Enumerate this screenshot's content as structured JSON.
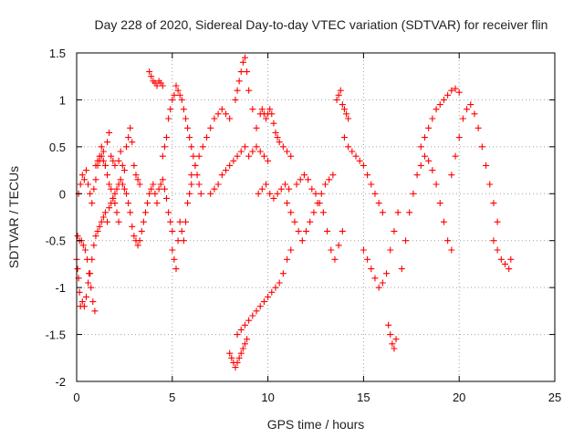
{
  "chart_data": {
    "type": "scatter",
    "title": "Day 228 of 2020, Sidereal Day-to-day VTEC variation (SDTVAR) for receiver flin",
    "xlabel": "GPS time / hours",
    "ylabel": "SDTVAR / TECUs",
    "xlim": [
      0,
      25
    ],
    "ylim": [
      -2,
      1.5
    ],
    "x_ticks": [
      0,
      5,
      10,
      15,
      20,
      25
    ],
    "y_ticks": [
      -2,
      -1.5,
      -1,
      -0.5,
      0,
      0.5,
      1,
      1.5
    ],
    "x_tick_labels": [
      "0",
      "5",
      "10",
      "15",
      "20",
      "25"
    ],
    "y_tick_labels": [
      "-2",
      "-1.5",
      "-1",
      "-0.5",
      "0",
      "0.5",
      "1",
      "1.5"
    ],
    "grid": true,
    "marker": "+",
    "color": "#ff0000",
    "series": [
      {
        "name": "SDTVAR",
        "x": [
          0.0,
          0.05,
          0.1,
          0.15,
          0.2,
          0.3,
          0.4,
          0.5,
          0.6,
          0.7,
          0.8,
          0.9,
          1.0,
          1.1,
          1.2,
          1.3,
          1.4,
          1.5,
          1.6,
          1.7,
          1.8,
          1.9,
          2.0,
          2.1,
          2.2,
          2.3,
          2.4,
          2.5,
          2.6,
          2.7,
          2.8,
          2.9,
          3.0,
          3.1,
          3.2,
          3.3,
          3.4,
          3.5,
          3.6,
          3.7,
          3.8,
          3.9,
          4.0,
          4.1,
          4.2,
          4.3,
          4.4,
          4.5,
          4.6,
          4.7,
          4.8,
          4.9,
          5.0,
          0.05,
          0.15,
          0.25,
          0.35,
          0.45,
          0.55,
          0.65,
          0.75,
          0.85,
          0.95,
          0.1,
          0.2,
          0.3,
          0.4,
          0.5,
          0.6,
          0.7,
          0.8,
          0.9,
          1.0,
          1.1,
          1.2,
          1.3,
          1.4,
          1.5,
          1.6,
          1.7,
          1.8,
          1.9,
          2.0,
          2.1,
          2.2,
          1.0,
          1.1,
          1.2,
          1.3,
          1.4,
          1.5,
          1.6,
          1.7,
          1.8,
          1.9,
          2.0,
          2.2,
          2.3,
          2.4,
          2.5,
          2.6,
          2.7,
          2.8,
          2.9,
          3.0,
          3.1,
          3.2,
          3.3,
          3.8,
          3.9,
          4.0,
          4.1,
          4.2,
          4.3,
          4.4,
          4.5,
          4.5,
          4.6,
          4.7,
          4.8,
          4.9,
          5.0,
          5.1,
          5.2,
          5.3,
          5.4,
          5.5,
          5.6,
          5.7,
          5.8,
          5.9,
          6.0,
          6.1,
          6.2,
          6.3,
          6.4,
          6.5,
          5.0,
          5.1,
          5.2,
          5.3,
          5.4,
          5.5,
          5.6,
          5.7,
          5.8,
          5.9,
          6.0,
          6.0,
          6.2,
          6.4,
          6.6,
          6.8,
          7.0,
          7.2,
          7.4,
          7.6,
          7.8,
          8.0,
          7.0,
          7.2,
          7.4,
          7.6,
          7.8,
          8.0,
          8.2,
          8.4,
          8.6,
          8.8,
          9.0,
          9.2,
          9.4,
          9.6,
          9.8,
          10.0,
          8.0,
          8.1,
          8.2,
          8.3,
          8.4,
          8.5,
          8.6,
          8.7,
          8.8,
          8.9,
          8.4,
          8.6,
          8.8,
          9.0,
          9.2,
          9.4,
          9.6,
          9.8,
          10.0,
          10.2,
          10.4,
          10.6,
          10.8,
          11.0,
          11.2,
          8.3,
          8.4,
          8.5,
          8.6,
          8.7,
          8.8,
          8.9,
          9.0,
          9.2,
          9.4,
          9.6,
          9.7,
          9.8,
          9.9,
          10.0,
          10.1,
          10.2,
          10.3,
          10.4,
          10.5,
          10.6,
          10.8,
          11.0,
          11.2,
          9.5,
          9.7,
          9.9,
          10.1,
          10.3,
          10.5,
          10.7,
          10.9,
          11.1,
          11.0,
          11.2,
          11.4,
          11.6,
          11.8,
          12.0,
          12.2,
          12.4,
          12.6,
          12.8,
          13.0,
          13.2,
          13.4,
          11.5,
          11.7,
          11.9,
          12.1,
          12.3,
          12.5,
          12.7,
          12.9,
          13.1,
          13.3,
          13.5,
          13.7,
          13.9,
          13.6,
          13.7,
          13.8,
          13.9,
          14.0,
          14.1,
          14.2,
          14.0,
          14.2,
          14.4,
          14.6,
          14.8,
          15.0,
          15.2,
          15.4,
          15.6,
          15.8,
          16.0,
          15.0,
          15.2,
          15.4,
          15.6,
          15.8,
          16.0,
          16.2,
          16.4,
          16.6,
          16.8,
          16.3,
          16.4,
          16.5,
          16.6,
          16.7,
          17.0,
          17.2,
          17.4,
          17.6,
          17.8,
          18.0,
          18.2,
          18.4,
          18.6,
          18.8,
          19.0,
          19.2,
          19.4,
          19.6,
          18.0,
          18.2,
          18.4,
          18.6,
          18.8,
          19.0,
          19.2,
          19.4,
          19.6,
          19.8,
          20.0,
          19.6,
          19.8,
          20.0,
          20.2,
          20.4,
          20.6,
          20.8,
          21.0,
          21.2,
          21.4,
          21.6,
          21.8,
          22.0,
          21.8,
          22.0,
          22.2,
          22.4,
          22.6,
          22.7
        ],
        "y": [
          -0.7,
          -0.8,
          -0.9,
          -1.05,
          -1.2,
          -1.15,
          -1.2,
          -1.1,
          -0.95,
          -0.85,
          -0.7,
          -0.55,
          -0.45,
          -0.4,
          -0.35,
          -0.3,
          -0.25,
          -0.2,
          -0.3,
          -0.15,
          -0.1,
          -0.05,
          0.0,
          0.05,
          0.1,
          0.15,
          0.1,
          0.05,
          0.0,
          -0.1,
          -0.2,
          -0.35,
          -0.45,
          -0.5,
          -0.55,
          -0.5,
          -0.4,
          -0.3,
          -0.2,
          -0.1,
          0.0,
          0.05,
          0.1,
          0.0,
          -0.1,
          0.05,
          0.1,
          0.15,
          0.05,
          -0.05,
          -0.2,
          -0.3,
          -0.4,
          -0.45,
          -0.5,
          -0.5,
          -0.55,
          -0.6,
          -0.7,
          -0.85,
          -1.0,
          -1.15,
          -1.25,
          0.0,
          0.1,
          0.2,
          0.15,
          0.25,
          0.1,
          0.0,
          -0.1,
          0.05,
          0.15,
          0.3,
          0.35,
          0.4,
          0.45,
          0.3,
          0.2,
          0.1,
          0.05,
          -0.05,
          -0.1,
          -0.2,
          -0.3,
          0.3,
          0.35,
          0.4,
          0.5,
          0.35,
          0.3,
          0.55,
          0.65,
          0.4,
          0.35,
          0.3,
          0.35,
          0.45,
          0.3,
          0.25,
          0.5,
          0.6,
          0.7,
          0.55,
          0.3,
          0.2,
          0.15,
          0.1,
          1.3,
          1.25,
          1.2,
          1.18,
          1.15,
          1.2,
          1.18,
          1.15,
          0.4,
          0.5,
          0.6,
          0.8,
          0.9,
          1.0,
          1.05,
          1.15,
          1.1,
          1.05,
          1.0,
          0.9,
          0.8,
          0.7,
          0.6,
          0.5,
          0.4,
          0.3,
          0.2,
          0.1,
          0.0,
          -0.6,
          -0.7,
          -0.8,
          -0.5,
          -0.3,
          -0.4,
          -0.5,
          -0.3,
          -0.1,
          0.0,
          0.1,
          0.2,
          0.3,
          0.4,
          0.5,
          0.6,
          0.7,
          0.8,
          0.85,
          0.9,
          0.85,
          0.8,
          0.0,
          0.05,
          0.1,
          0.2,
          0.25,
          0.3,
          0.35,
          0.4,
          0.45,
          0.5,
          0.4,
          0.45,
          0.5,
          0.45,
          0.4,
          0.35,
          -1.7,
          -1.75,
          -1.8,
          -1.85,
          -1.8,
          -1.75,
          -1.7,
          -1.65,
          -1.6,
          -1.55,
          -1.5,
          -1.45,
          -1.4,
          -1.35,
          -1.3,
          -1.25,
          -1.2,
          -1.15,
          -1.1,
          -1.05,
          -1.0,
          -0.95,
          -0.85,
          -0.7,
          -0.6,
          1.0,
          1.1,
          1.2,
          1.3,
          1.4,
          1.45,
          1.3,
          1.1,
          0.9,
          0.7,
          0.85,
          0.9,
          0.85,
          0.8,
          0.85,
          0.9,
          0.85,
          0.75,
          0.65,
          0.6,
          0.55,
          0.5,
          0.45,
          0.4,
          0.0,
          0.05,
          0.1,
          0.0,
          -0.05,
          0.0,
          0.05,
          0.1,
          0.05,
          -0.1,
          -0.2,
          -0.3,
          -0.4,
          -0.5,
          -0.4,
          -0.3,
          -0.2,
          -0.1,
          0.0,
          0.1,
          0.15,
          0.2,
          0.1,
          0.15,
          0.2,
          0.15,
          0.05,
          0.0,
          -0.1,
          -0.2,
          -0.4,
          -0.6,
          -0.7,
          -0.55,
          -0.4,
          1.0,
          1.05,
          1.1,
          0.95,
          0.9,
          0.85,
          0.8,
          0.6,
          0.5,
          0.45,
          0.4,
          0.35,
          0.3,
          0.2,
          0.1,
          0.0,
          -0.1,
          -0.2,
          -0.6,
          -0.7,
          -0.8,
          -0.9,
          -1.0,
          -0.95,
          -0.85,
          -0.6,
          -0.4,
          -0.2,
          -1.4,
          -1.5,
          -1.6,
          -1.65,
          -1.55,
          -0.8,
          -0.5,
          -0.2,
          0.0,
          0.2,
          0.3,
          0.4,
          0.35,
          0.25,
          0.1,
          -0.1,
          -0.3,
          -0.5,
          -0.6,
          0.5,
          0.6,
          0.7,
          0.8,
          0.9,
          0.95,
          1.0,
          1.05,
          1.1,
          1.12,
          1.08,
          0.2,
          0.4,
          0.6,
          0.8,
          0.9,
          0.95,
          0.85,
          0.7,
          0.5,
          0.3,
          0.1,
          -0.1,
          -0.3,
          -0.5,
          -0.6,
          -0.7,
          -0.75,
          -0.8,
          -0.7
        ]
      }
    ]
  }
}
